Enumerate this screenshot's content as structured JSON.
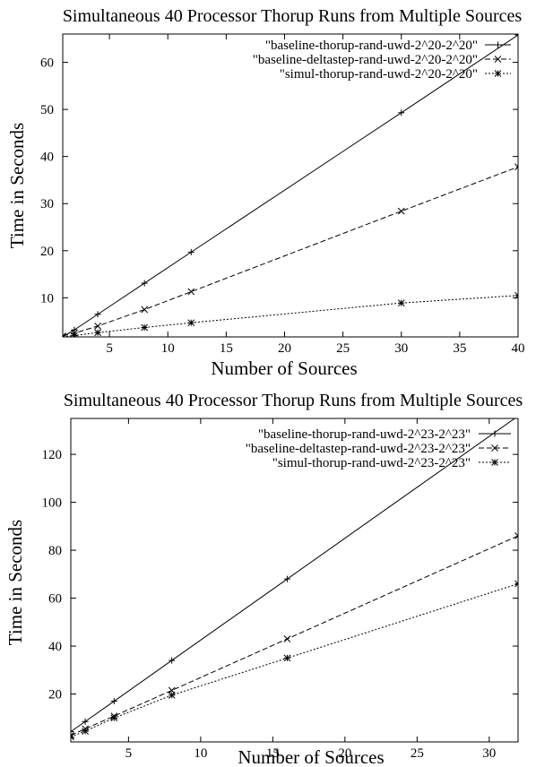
{
  "chart_data": [
    {
      "type": "line",
      "title": "Simultaneous 40 Processor Thorup Runs from Multiple Sources",
      "xlabel": "Number of Sources",
      "ylabel": "Time in Seconds",
      "xlim": [
        1,
        40
      ],
      "ylim": [
        1.7,
        66
      ],
      "xticks": [
        5,
        10,
        15,
        20,
        25,
        30,
        35,
        40
      ],
      "yticks": [
        10,
        20,
        30,
        40,
        50,
        60
      ],
      "grid": false,
      "legend_position": "top-right",
      "series": [
        {
          "name": "\"baseline-thorup-rand-uwd-2^20-2^20\"",
          "marker": "+",
          "dash": "solid",
          "x": [
            1,
            2,
            4,
            8,
            12,
            30,
            40
          ],
          "y": [
            1.7,
            3.2,
            6.5,
            13.1,
            19.7,
            49.3,
            65.8
          ]
        },
        {
          "name": "\"baseline-deltastep-rand-uwd-2^20-2^20\"",
          "marker": "x",
          "dash": "dashed",
          "x": [
            1,
            2,
            4,
            8,
            12,
            30,
            40
          ],
          "y": [
            1.9,
            2.5,
            4.0,
            7.5,
            11.3,
            28.4,
            37.8
          ]
        },
        {
          "name": "\"simul-thorup-rand-uwd-2^20-2^20\"",
          "marker": "*",
          "dash": "dotted",
          "x": [
            1,
            2,
            4,
            8,
            12,
            30,
            40
          ],
          "y": [
            1.7,
            2.0,
            2.6,
            3.7,
            4.7,
            8.9,
            10.5
          ]
        }
      ]
    },
    {
      "type": "line",
      "title": "Simultaneous 40 Processor Thorup Runs from Multiple Sources",
      "xlabel": "Number of Sources",
      "ylabel": "Time in Seconds",
      "xlim": [
        1,
        32
      ],
      "ylim": [
        0,
        135
      ],
      "xticks": [
        5,
        10,
        15,
        20,
        25,
        30
      ],
      "yticks": [
        20,
        40,
        60,
        80,
        100,
        120
      ],
      "grid": false,
      "legend_position": "top-right",
      "series": [
        {
          "name": "\"baseline-thorup-rand-uwd-2^23-2^23\"",
          "marker": "+",
          "dash": "solid",
          "x": [
            1,
            2,
            4,
            8,
            16,
            32
          ],
          "y": [
            4.3,
            8.5,
            17,
            34,
            68,
            136
          ]
        },
        {
          "name": "\"baseline-deltastep-rand-uwd-2^23-2^23\"",
          "marker": "x",
          "dash": "dashed",
          "x": [
            1,
            2,
            4,
            8,
            16,
            32
          ],
          "y": [
            2.7,
            5.5,
            10.8,
            21.5,
            43,
            86
          ]
        },
        {
          "name": "\"simul-thorup-rand-uwd-2^23-2^23\"",
          "marker": "*",
          "dash": "dotted",
          "x": [
            1,
            2,
            4,
            8,
            16,
            32
          ],
          "y": [
            2.1,
            4.5,
            10,
            19.5,
            35,
            66
          ]
        }
      ]
    }
  ]
}
